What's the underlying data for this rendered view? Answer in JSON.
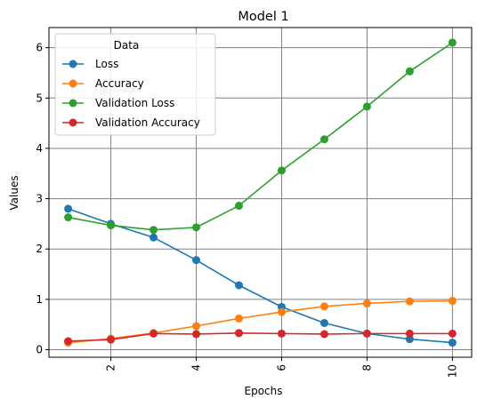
{
  "chart_data": {
    "type": "line",
    "title": "Model 1",
    "xlabel": "Epochs",
    "ylabel": "Values",
    "x": [
      1,
      2,
      3,
      4,
      5,
      6,
      7,
      8,
      9,
      10
    ],
    "xticks": [
      2,
      4,
      6,
      8,
      10
    ],
    "yticks": [
      0,
      1,
      2,
      3,
      4,
      5,
      6
    ],
    "xlim": [
      0.55,
      10.45
    ],
    "ylim": [
      -0.15,
      6.4
    ],
    "grid": true,
    "legend": {
      "title": "Data",
      "placement": "top-left"
    },
    "series": [
      {
        "name": "Loss",
        "color": "#1f77b4",
        "marker": "circle",
        "values": [
          2.8,
          2.5,
          2.23,
          1.78,
          1.28,
          0.85,
          0.53,
          0.32,
          0.21,
          0.14
        ]
      },
      {
        "name": "Accuracy",
        "color": "#ff7f0e",
        "marker": "circle",
        "values": [
          0.14,
          0.22,
          0.33,
          0.47,
          0.62,
          0.75,
          0.86,
          0.92,
          0.96,
          0.97
        ]
      },
      {
        "name": "Validation Loss",
        "color": "#2ca02c",
        "marker": "circle",
        "values": [
          2.63,
          2.47,
          2.38,
          2.43,
          2.86,
          3.56,
          4.18,
          4.83,
          5.53,
          6.1
        ]
      },
      {
        "name": "Validation Accuracy",
        "color": "#d62728",
        "marker": "circle",
        "values": [
          0.17,
          0.2,
          0.32,
          0.31,
          0.33,
          0.32,
          0.31,
          0.32,
          0.32,
          0.32
        ]
      }
    ]
  }
}
